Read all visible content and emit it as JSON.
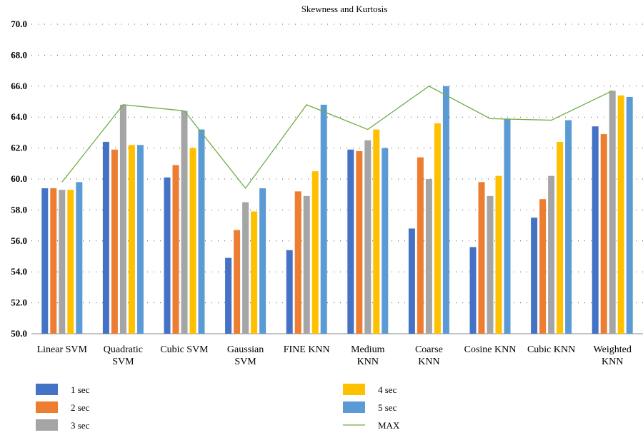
{
  "chart_data": {
    "type": "bar",
    "title": "Skewness and Kurtosis",
    "xlabel": "",
    "ylabel": "",
    "ylim": [
      50,
      70
    ],
    "yticks": [
      "50.0",
      "52.0",
      "54.0",
      "56.0",
      "58.0",
      "60.0",
      "62.0",
      "64.0",
      "66.0",
      "68.0",
      "70.0"
    ],
    "grid": "horizontal dotted",
    "legend_position": "bottom",
    "categories": [
      [
        "Linear SVM"
      ],
      [
        "Quadratic",
        "SVM"
      ],
      [
        "Cubic SVM"
      ],
      [
        "Gaussian",
        "SVM"
      ],
      [
        "FINE KNN"
      ],
      [
        "Medium",
        "KNN"
      ],
      [
        "Coarse",
        "KNN"
      ],
      [
        "Cosine KNN"
      ],
      [
        "Cubic KNN"
      ],
      [
        "Weighted",
        "KNN"
      ]
    ],
    "series": [
      {
        "name": "1 sec",
        "color": "#4472C4",
        "values": [
          59.4,
          62.4,
          60.1,
          54.9,
          55.4,
          61.9,
          56.8,
          55.6,
          57.5,
          63.4
        ]
      },
      {
        "name": "2 sec",
        "color": "#ED7D31",
        "values": [
          59.4,
          61.9,
          60.9,
          56.7,
          59.2,
          61.8,
          61.4,
          59.8,
          58.7,
          62.9
        ]
      },
      {
        "name": "3 sec",
        "color": "#A5A5A5",
        "values": [
          59.3,
          64.8,
          64.4,
          58.5,
          58.9,
          62.5,
          60.0,
          58.9,
          60.2,
          65.7
        ]
      },
      {
        "name": "4 sec",
        "color": "#FFC000",
        "values": [
          59.3,
          62.2,
          62.0,
          57.9,
          60.5,
          63.2,
          63.6,
          60.2,
          62.4,
          65.4
        ]
      },
      {
        "name": "5 sec",
        "color": "#5B9BD5",
        "values": [
          59.8,
          62.2,
          63.2,
          59.4,
          64.8,
          62.0,
          66.0,
          63.9,
          63.8,
          65.3
        ]
      }
    ],
    "line_series": {
      "name": "MAX",
      "color": "#70AD47",
      "values": [
        59.8,
        64.8,
        64.4,
        59.4,
        64.8,
        63.2,
        66.0,
        63.9,
        63.8,
        65.7
      ]
    }
  }
}
